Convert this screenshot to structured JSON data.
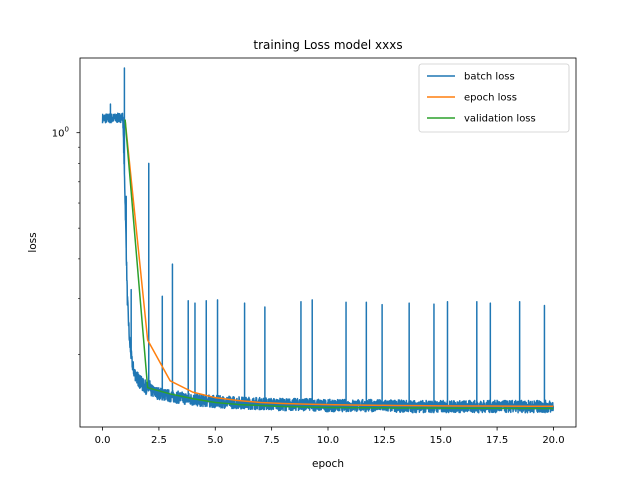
{
  "chart_data": {
    "type": "line",
    "title": "training Loss model xxxs",
    "xlabel": "epoch",
    "ylabel": "loss",
    "xlim": [
      -1.0,
      21.0
    ],
    "ylim": [
      0.118,
      1.72
    ],
    "yscale": "log",
    "xticks": [
      "0.0",
      "2.5",
      "5.0",
      "7.5",
      "10.0",
      "12.5",
      "15.0",
      "17.5",
      "20.0"
    ],
    "yticks": [
      {
        "value": 1.0,
        "base": "10",
        "exp": "0"
      }
    ],
    "legend_position": "upper-right",
    "grid": false,
    "series": [
      {
        "name": "batch loss",
        "color": "#1f77b4",
        "kind": "noisy-batch",
        "x": [
          0.0,
          0.3,
          0.6,
          0.9,
          1.0,
          1.1,
          1.2,
          1.3,
          1.4,
          1.6,
          1.8,
          2.0,
          2.3,
          2.6,
          3.0,
          3.5,
          4.0,
          5.0,
          6.0,
          7.0,
          8.0,
          9.0,
          10.0,
          12.0,
          14.0,
          16.0,
          18.0,
          20.0
        ],
        "values": [
          1.11,
          1.11,
          1.11,
          1.12,
          0.62,
          0.3,
          0.218,
          0.19,
          0.176,
          0.166,
          0.16,
          0.156,
          0.152,
          0.15,
          0.148,
          0.146,
          0.144,
          0.142,
          0.141,
          0.14,
          0.139,
          0.139,
          0.138,
          0.138,
          0.137,
          0.137,
          0.137,
          0.137
        ],
        "spikes": [
          {
            "x": 0.35,
            "y": 1.23
          },
          {
            "x": 0.97,
            "y": 1.6
          },
          {
            "x": 1.05,
            "y": 0.63
          },
          {
            "x": 1.27,
            "y": 0.32
          },
          {
            "x": 2.05,
            "y": 0.8
          },
          {
            "x": 2.1,
            "y": 0.165
          },
          {
            "x": 2.65,
            "y": 0.305
          },
          {
            "x": 3.1,
            "y": 0.385
          },
          {
            "x": 3.8,
            "y": 0.295
          },
          {
            "x": 4.1,
            "y": 0.29
          },
          {
            "x": 4.6,
            "y": 0.295
          },
          {
            "x": 5.1,
            "y": 0.297
          },
          {
            "x": 6.3,
            "y": 0.29
          },
          {
            "x": 7.2,
            "y": 0.282
          },
          {
            "x": 8.8,
            "y": 0.293
          },
          {
            "x": 9.3,
            "y": 0.297
          },
          {
            "x": 10.8,
            "y": 0.292
          },
          {
            "x": 11.7,
            "y": 0.292
          },
          {
            "x": 12.4,
            "y": 0.287
          },
          {
            "x": 13.6,
            "y": 0.29
          },
          {
            "x": 14.7,
            "y": 0.288
          },
          {
            "x": 15.3,
            "y": 0.293
          },
          {
            "x": 16.6,
            "y": 0.293
          },
          {
            "x": 17.2,
            "y": 0.29
          },
          {
            "x": 18.5,
            "y": 0.293
          },
          {
            "x": 19.6,
            "y": 0.285
          }
        ]
      },
      {
        "name": "epoch loss",
        "color": "#ff7f0e",
        "x": [
          1,
          2,
          3,
          4,
          5,
          6,
          7,
          8,
          9,
          10,
          11,
          12,
          13,
          14,
          15,
          16,
          17,
          18,
          19,
          20
        ],
        "values": [
          1.1,
          0.222,
          0.165,
          0.152,
          0.146,
          0.143,
          0.141,
          0.14,
          0.1393,
          0.1388,
          0.1385,
          0.1382,
          0.138,
          0.1378,
          0.1376,
          0.1375,
          0.1374,
          0.1373,
          0.1372,
          0.1372
        ]
      },
      {
        "name": "validation loss",
        "color": "#2ca02c",
        "x": [
          1,
          2,
          3,
          4,
          5,
          6,
          7,
          8,
          9,
          10,
          11,
          12,
          13,
          14,
          15,
          16,
          17,
          18,
          19,
          20
        ],
        "values": [
          1.1,
          0.157,
          0.15,
          0.145,
          0.141,
          0.139,
          0.138,
          0.137,
          0.1365,
          0.136,
          0.1358,
          0.1356,
          0.1355,
          0.1354,
          0.1353,
          0.1352,
          0.1352,
          0.1351,
          0.1351,
          0.135
        ]
      }
    ]
  }
}
